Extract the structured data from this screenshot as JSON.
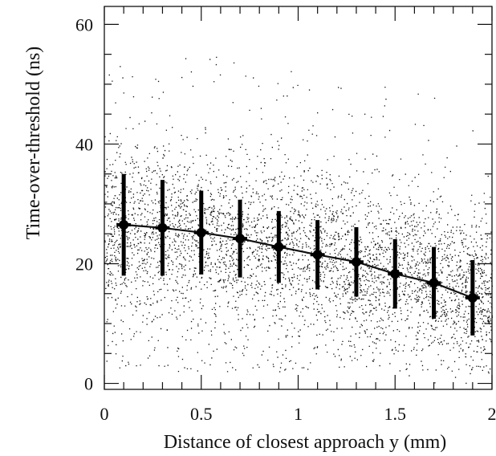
{
  "chart_data": {
    "type": "scatter",
    "xlabel": "Distance of closest approach y (mm)",
    "ylabel": "Time-over-threshold (ns)",
    "xlim": [
      0,
      2
    ],
    "ylim": [
      -1,
      63
    ],
    "x_ticks": [
      "0",
      "0.5",
      "1",
      "1.5",
      "2"
    ],
    "y_ticks": [
      "0",
      "20",
      "40",
      "60"
    ],
    "grid": false,
    "profile": {
      "x": [
        0.1,
        0.3,
        0.5,
        0.7,
        0.9,
        1.1,
        1.3,
        1.5,
        1.7,
        1.9
      ],
      "y": [
        26.5,
        26.0,
        25.2,
        24.2,
        22.8,
        21.5,
        20.3,
        18.3,
        16.8,
        14.3
      ],
      "err": [
        8.5,
        8.0,
        7.0,
        6.5,
        6.0,
        5.8,
        5.8,
        5.8,
        6.0,
        6.3
      ]
    },
    "scatter_color": "#111111"
  }
}
